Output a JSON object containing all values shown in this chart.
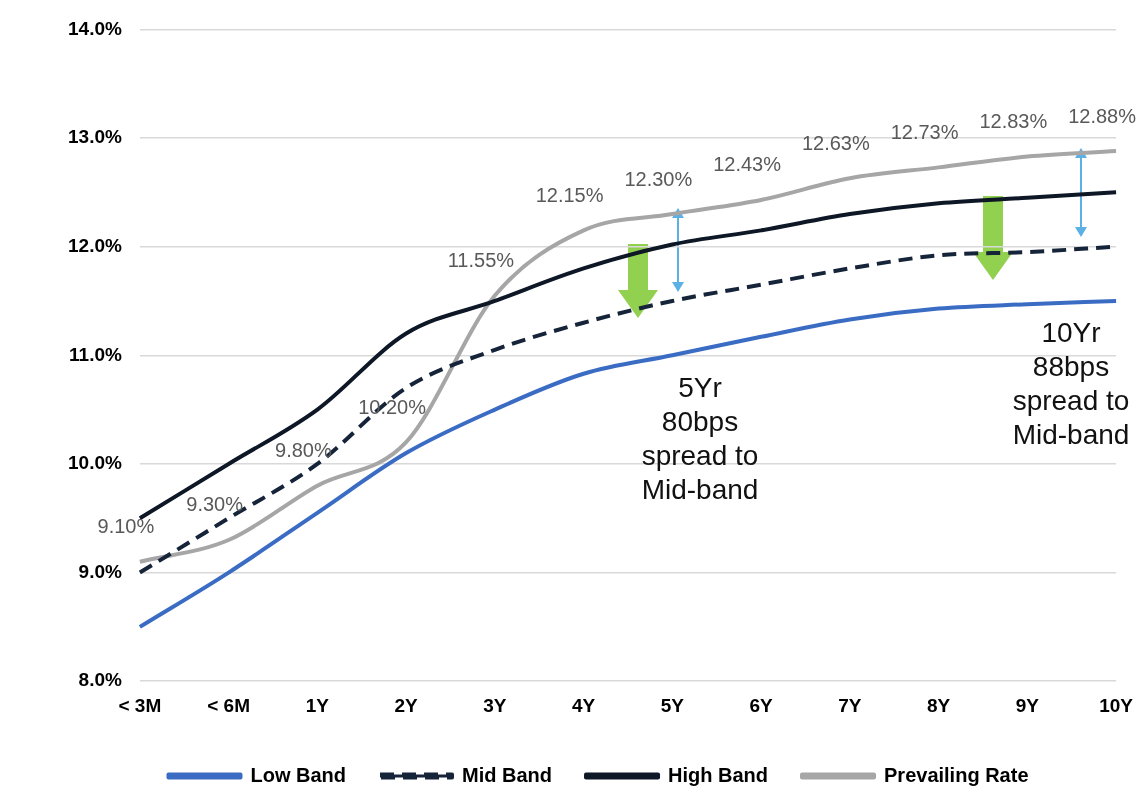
{
  "chart_data": {
    "type": "line",
    "categories": [
      "< 3M",
      "< 6M",
      "1Y",
      "2Y",
      "3Y",
      "4Y",
      "5Y",
      "6Y",
      "7Y",
      "8Y",
      "9Y",
      "10Y"
    ],
    "series": [
      {
        "name": "Low Band",
        "color": "#3a6cc4",
        "line_style": "solid",
        "values": [
          8.5,
          9.0,
          9.55,
          10.1,
          10.5,
          10.83,
          11.0,
          11.17,
          11.33,
          11.43,
          11.47,
          11.5
        ]
      },
      {
        "name": "Mid Band",
        "color": "#16243a",
        "line_style": "dashed",
        "values": [
          9.0,
          9.5,
          10.0,
          10.7,
          11.05,
          11.3,
          11.5,
          11.65,
          11.8,
          11.92,
          11.95,
          12.0
        ]
      },
      {
        "name": "High Band",
        "color": "#0d1726",
        "line_style": "solid",
        "values": [
          9.5,
          10.0,
          10.5,
          11.2,
          11.5,
          11.8,
          12.02,
          12.15,
          12.3,
          12.4,
          12.45,
          12.5
        ]
      },
      {
        "name": "Prevailing Rate",
        "color": "#a6a6a6",
        "line_style": "solid",
        "values": [
          9.1,
          9.3,
          9.8,
          10.2,
          11.55,
          12.15,
          12.3,
          12.43,
          12.63,
          12.73,
          12.83,
          12.88
        ],
        "value_labels": [
          "9.10%",
          "9.30%",
          "9.80%",
          "10.20%",
          "11.55%",
          "12.15%",
          "12.30%",
          "12.43%",
          "12.63%",
          "12.73%",
          "12.83%",
          "12.88%"
        ]
      }
    ],
    "ylim": [
      8,
      14
    ],
    "yticks": [
      {
        "value": 8,
        "label": "8.0%"
      },
      {
        "value": 9,
        "label": "9.0%"
      },
      {
        "value": 10,
        "label": "10.0%"
      },
      {
        "value": 11,
        "label": "11.0%"
      },
      {
        "value": 12,
        "label": "12.0%"
      },
      {
        "value": 13,
        "label": "13.0%"
      },
      {
        "value": 14,
        "label": "14.0%"
      }
    ],
    "grid": "y",
    "legend": "bottom",
    "marker": "none",
    "annotations": [
      "5Yr\n80bps\nspread to\nMid-band",
      "10Yr\n88bps\nspread to\nMid-band"
    ]
  }
}
